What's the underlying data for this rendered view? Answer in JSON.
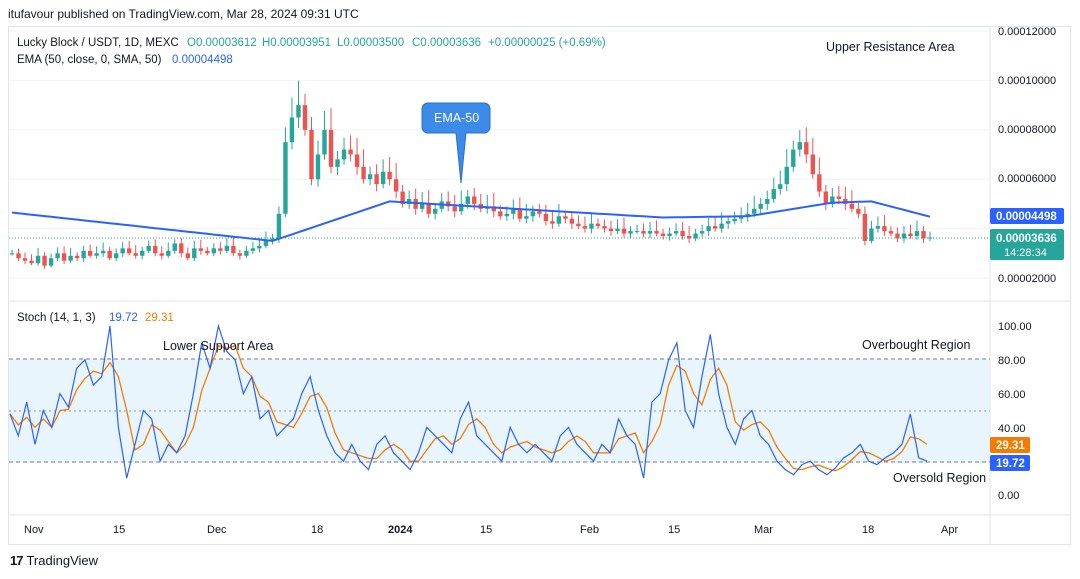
{
  "header": {
    "publisher": "itufavour published on TradingView.com, Mar 28, 2024 09:31 UTC"
  },
  "legend": {
    "symbol": "Lucky Block / USDT, 1D, MEXC",
    "open": "O0.00003612",
    "high": "H0.00003951",
    "low": "L0.00003500",
    "close": "C0.00003636",
    "change": "+0.00000025 (+0.69%)",
    "ema_label": "EMA (50, close, 0, SMA, 50)",
    "ema_value": "0.00004498"
  },
  "stoch_legend": {
    "label": "Stoch (14, 1, 3)",
    "k": "19.72",
    "d": "29.31"
  },
  "annotations": {
    "upper_resistance": "Upper Resistance Area",
    "ema_callout": "EMA-50",
    "lower_support": "Lower Support Area",
    "overbought": "Overbought Region",
    "oversold": "Oversold Region"
  },
  "price_badges": {
    "ema": "0.00004498",
    "close": "0.00003636",
    "countdown": "14:28:34"
  },
  "stoch_badges": {
    "d": "29.31",
    "k": "19.72"
  },
  "colors": {
    "up": "#26a69a",
    "down": "#ef5350",
    "ema": "#2962ff",
    "k": "#2962ff",
    "d": "#f57c00",
    "band": "#e3f2fd"
  },
  "chart_data": [
    {
      "type": "candlestick",
      "title": "Lucky Block / USDT, 1D, MEXC",
      "y_ticks": [
        "0.00012000",
        "0.00010000",
        "0.00008000",
        "0.00006000",
        "0.00002000"
      ],
      "ylim": [
        1.5e-05,
        0.000122
      ],
      "x_ticks": [
        "Nov",
        "15",
        "Dec",
        "18",
        "2024",
        "15",
        "Feb",
        "15",
        "Mar",
        "18",
        "Apr"
      ],
      "ema_series": {
        "name": "EMA (50, close, 0, SMA, 50)",
        "last": 4.498e-05
      },
      "last_close": 3.636e-05,
      "grid": true
    },
    {
      "type": "line",
      "title": "Stoch (14, 1, 3)",
      "y_ticks": [
        "100.00",
        "80.00",
        "60.00",
        "40.00",
        "0.00"
      ],
      "ylim": [
        0,
        100
      ],
      "levels": [
        80,
        50,
        20
      ],
      "series": [
        {
          "name": "%K",
          "last": 19.72
        },
        {
          "name": "%D",
          "last": 29.31
        }
      ]
    }
  ]
}
